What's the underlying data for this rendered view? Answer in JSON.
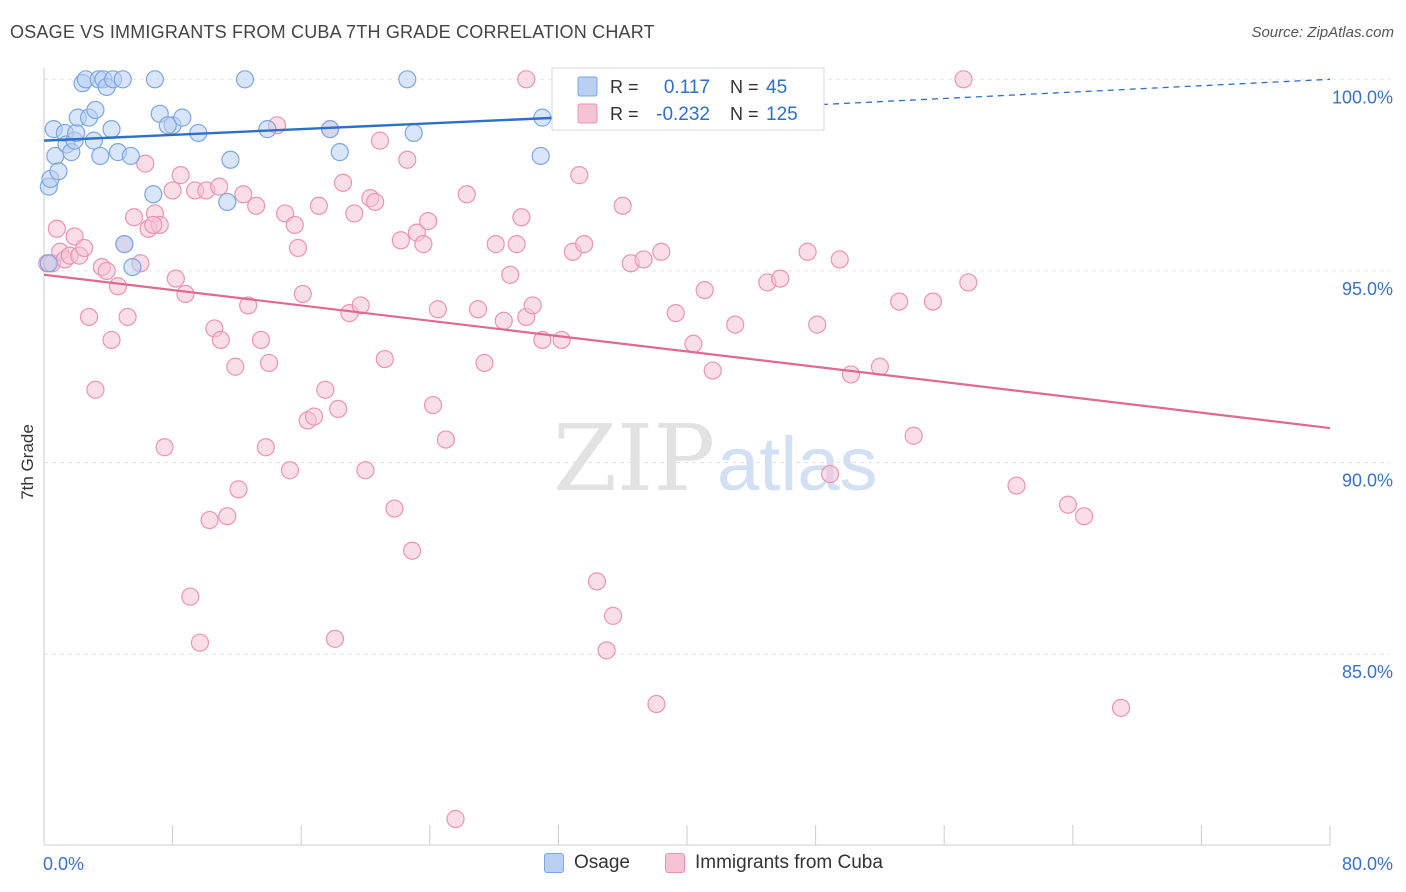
{
  "header": {
    "title": "OSAGE VS IMMIGRANTS FROM CUBA 7TH GRADE CORRELATION CHART",
    "source": "Source: ZipAtlas.com"
  },
  "watermark": {
    "part1": "ZIP",
    "part2": "atlas"
  },
  "legend": {
    "rows": [
      {
        "r_label": "R =",
        "r_value": "0.117",
        "n_label": "N =",
        "n_value": "45"
      },
      {
        "r_label": "R =",
        "r_value": "-0.232",
        "n_label": "N =",
        "n_value": "125"
      }
    ]
  },
  "chart_data": {
    "type": "scatter",
    "title": "OSAGE VS IMMIGRANTS FROM CUBA 7TH GRADE CORRELATION CHART",
    "xlabel": "",
    "ylabel": "7th Grade",
    "xlim": [
      0,
      80
    ],
    "ylim": [
      80.5,
      100.6
    ],
    "x_tick_labels": [
      "0.0%",
      "80.0%"
    ],
    "y_ticks": [
      85,
      90,
      95,
      100
    ],
    "y_tick_labels": [
      "85.0%",
      "90.0%",
      "95.0%",
      "100.0%"
    ],
    "grid": true,
    "legend_position": "top-center",
    "series": [
      {
        "name": "Osage",
        "color": "#7ba7e6",
        "fill": "#b9d0f3",
        "trend": {
          "x0": 0,
          "y0": 98.4,
          "x1": 32,
          "y1": 99.0,
          "dashed_to_x": 80,
          "dashed_to_y": 100.0,
          "color": "#2e6fc9"
        },
        "points": [
          [
            0.3,
            97.2
          ],
          [
            0.4,
            97.4
          ],
          [
            0.6,
            98.7
          ],
          [
            0.7,
            98.0
          ],
          [
            0.9,
            97.6
          ],
          [
            1.3,
            98.6
          ],
          [
            1.4,
            98.3
          ],
          [
            1.7,
            98.1
          ],
          [
            1.9,
            98.4
          ],
          [
            2.0,
            98.6
          ],
          [
            2.1,
            99.0
          ],
          [
            2.4,
            99.9
          ],
          [
            2.6,
            100.0
          ],
          [
            2.8,
            99.0
          ],
          [
            3.1,
            98.4
          ],
          [
            3.2,
            99.2
          ],
          [
            3.4,
            100.0
          ],
          [
            3.5,
            98.0
          ],
          [
            3.7,
            100.0
          ],
          [
            3.9,
            99.8
          ],
          [
            4.2,
            98.7
          ],
          [
            4.3,
            100.0
          ],
          [
            4.6,
            98.1
          ],
          [
            4.9,
            100.0
          ],
          [
            5.0,
            95.7
          ],
          [
            5.4,
            98.0
          ],
          [
            5.5,
            95.1
          ],
          [
            6.8,
            97.0
          ],
          [
            6.9,
            100.0
          ],
          [
            7.2,
            99.1
          ],
          [
            8.0,
            98.8
          ],
          [
            8.6,
            99.0
          ],
          [
            9.6,
            98.6
          ],
          [
            11.4,
            96.8
          ],
          [
            11.6,
            97.9
          ],
          [
            12.5,
            100.0
          ],
          [
            13.9,
            98.7
          ],
          [
            17.8,
            98.7
          ],
          [
            18.4,
            98.1
          ],
          [
            22.6,
            100.0
          ],
          [
            23.0,
            98.6
          ],
          [
            30.9,
            98.0
          ],
          [
            31.0,
            99.0
          ],
          [
            7.7,
            98.8
          ],
          [
            0.3,
            95.2
          ]
        ]
      },
      {
        "name": "Immigrants from Cuba",
        "color": "#ec93b4",
        "fill": "#f6c3d4",
        "trend": {
          "x0": 0,
          "y0": 94.9,
          "x1": 80,
          "y1": 90.9,
          "color": "#e0698f"
        },
        "points": [
          [
            0.2,
            95.2
          ],
          [
            0.5,
            95.2
          ],
          [
            0.8,
            96.1
          ],
          [
            1.0,
            95.5
          ],
          [
            1.3,
            95.3
          ],
          [
            1.6,
            95.4
          ],
          [
            1.9,
            95.9
          ],
          [
            2.2,
            95.4
          ],
          [
            2.5,
            95.6
          ],
          [
            2.8,
            93.8
          ],
          [
            3.2,
            91.9
          ],
          [
            3.6,
            95.1
          ],
          [
            3.9,
            95.0
          ],
          [
            4.2,
            93.2
          ],
          [
            4.6,
            94.6
          ],
          [
            5.0,
            95.7
          ],
          [
            5.2,
            93.8
          ],
          [
            5.6,
            96.4
          ],
          [
            6.0,
            95.2
          ],
          [
            6.3,
            97.8
          ],
          [
            6.5,
            96.1
          ],
          [
            6.9,
            96.5
          ],
          [
            7.2,
            96.2
          ],
          [
            7.5,
            90.4
          ],
          [
            8.0,
            97.1
          ],
          [
            8.2,
            94.8
          ],
          [
            8.5,
            97.5
          ],
          [
            8.8,
            94.4
          ],
          [
            9.1,
            86.5
          ],
          [
            9.4,
            97.1
          ],
          [
            9.7,
            85.3
          ],
          [
            10.1,
            97.1
          ],
          [
            10.3,
            88.5
          ],
          [
            10.6,
            93.5
          ],
          [
            10.9,
            97.2
          ],
          [
            11.0,
            93.2
          ],
          [
            11.4,
            88.6
          ],
          [
            11.9,
            92.5
          ],
          [
            12.1,
            89.3
          ],
          [
            12.4,
            97.0
          ],
          [
            12.7,
            94.1
          ],
          [
            13.2,
            96.7
          ],
          [
            13.5,
            93.2
          ],
          [
            13.8,
            90.4
          ],
          [
            14.0,
            92.6
          ],
          [
            14.5,
            98.8
          ],
          [
            15.0,
            96.5
          ],
          [
            15.3,
            89.8
          ],
          [
            15.6,
            96.2
          ],
          [
            15.8,
            95.6
          ],
          [
            16.1,
            94.4
          ],
          [
            16.4,
            91.1
          ],
          [
            16.8,
            91.2
          ],
          [
            17.1,
            96.7
          ],
          [
            17.5,
            91.9
          ],
          [
            17.8,
            98.7
          ],
          [
            18.1,
            85.4
          ],
          [
            18.3,
            91.4
          ],
          [
            18.6,
            97.3
          ],
          [
            19.0,
            93.9
          ],
          [
            19.3,
            96.5
          ],
          [
            19.7,
            94.1
          ],
          [
            20.0,
            89.8
          ],
          [
            20.3,
            96.9
          ],
          [
            20.6,
            96.8
          ],
          [
            20.9,
            98.4
          ],
          [
            21.2,
            92.7
          ],
          [
            21.8,
            88.8
          ],
          [
            22.2,
            95.8
          ],
          [
            22.6,
            97.9
          ],
          [
            22.9,
            87.7
          ],
          [
            23.2,
            96.0
          ],
          [
            23.6,
            95.7
          ],
          [
            23.9,
            96.3
          ],
          [
            24.2,
            91.5
          ],
          [
            24.5,
            94.0
          ],
          [
            25.0,
            90.6
          ],
          [
            25.6,
            80.7
          ],
          [
            26.3,
            97.0
          ],
          [
            27.0,
            94.0
          ],
          [
            27.4,
            92.6
          ],
          [
            28.1,
            95.7
          ],
          [
            28.6,
            93.7
          ],
          [
            29.0,
            94.9
          ],
          [
            29.4,
            95.7
          ],
          [
            29.7,
            96.4
          ],
          [
            30.0,
            93.8
          ],
          [
            30.4,
            94.1
          ],
          [
            31.0,
            93.2
          ],
          [
            32.2,
            93.2
          ],
          [
            32.9,
            95.5
          ],
          [
            33.3,
            97.5
          ],
          [
            33.6,
            95.7
          ],
          [
            34.4,
            86.9
          ],
          [
            35.0,
            85.1
          ],
          [
            35.4,
            86.0
          ],
          [
            36.0,
            96.7
          ],
          [
            36.5,
            95.2
          ],
          [
            37.3,
            95.3
          ],
          [
            38.1,
            83.7
          ],
          [
            38.4,
            95.5
          ],
          [
            39.3,
            93.9
          ],
          [
            40.4,
            93.1
          ],
          [
            41.1,
            94.5
          ],
          [
            41.6,
            92.4
          ],
          [
            43.0,
            93.6
          ],
          [
            45.0,
            94.7
          ],
          [
            45.8,
            94.8
          ],
          [
            47.5,
            95.5
          ],
          [
            48.1,
            93.6
          ],
          [
            48.9,
            89.7
          ],
          [
            49.5,
            95.3
          ],
          [
            50.2,
            92.3
          ],
          [
            52.0,
            92.5
          ],
          [
            53.2,
            94.2
          ],
          [
            54.1,
            90.7
          ],
          [
            55.3,
            94.2
          ],
          [
            57.2,
            100.0
          ],
          [
            57.5,
            94.7
          ],
          [
            60.5,
            89.4
          ],
          [
            63.7,
            88.9
          ],
          [
            64.7,
            88.6
          ],
          [
            67.0,
            83.6
          ],
          [
            30.0,
            100.0
          ],
          [
            6.8,
            96.2
          ]
        ]
      }
    ]
  }
}
